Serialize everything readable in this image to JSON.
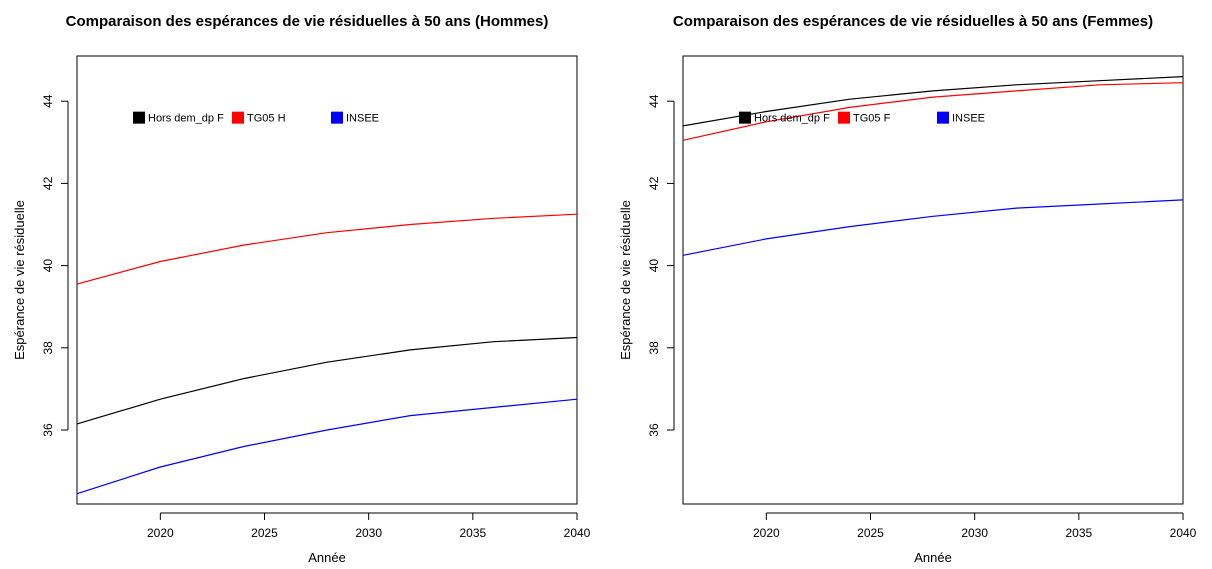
{
  "chart_data": [
    {
      "type": "line",
      "title": "Comparaison des espérances de vie résiduelles à 50 ans (Hommes)",
      "xlabel": "Année",
      "ylabel": "Espérance de vie résiduelle",
      "xlim": [
        2016,
        2040
      ],
      "ylim": [
        34.2,
        45.1
      ],
      "xticks": [
        2020,
        2025,
        2030,
        2035,
        2040
      ],
      "yticks": [
        36,
        38,
        40,
        42,
        44
      ],
      "grid": false,
      "legend_position": "top-left",
      "x": [
        2016,
        2020,
        2024,
        2028,
        2032,
        2036,
        2040
      ],
      "series": [
        {
          "name": "Hors dem_dp F",
          "color": "#000000",
          "values": [
            36.15,
            36.75,
            37.25,
            37.65,
            37.95,
            38.15,
            38.25
          ]
        },
        {
          "name": "TG05 H",
          "color": "#ff0000",
          "values": [
            39.55,
            40.1,
            40.5,
            40.8,
            41.0,
            41.15,
            41.25
          ]
        },
        {
          "name": "INSEE",
          "color": "#0000ff",
          "values": [
            34.45,
            35.1,
            35.6,
            36.0,
            36.35,
            36.55,
            36.75
          ]
        }
      ]
    },
    {
      "type": "line",
      "title": "Comparaison des espérances de vie résiduelles à 50 ans (Femmes)",
      "xlabel": "Année",
      "ylabel": "Espérance de vie résiduelle",
      "xlim": [
        2016,
        2040
      ],
      "ylim": [
        34.2,
        45.1
      ],
      "xticks": [
        2020,
        2025,
        2030,
        2035,
        2040
      ],
      "yticks": [
        36,
        38,
        40,
        42,
        44
      ],
      "grid": false,
      "legend_position": "top-left",
      "x": [
        2016,
        2020,
        2024,
        2028,
        2032,
        2036,
        2040
      ],
      "series": [
        {
          "name": "Hors dem_dp F",
          "color": "#000000",
          "values": [
            43.4,
            43.75,
            44.05,
            44.25,
            44.4,
            44.5,
            44.6
          ]
        },
        {
          "name": "TG05 F",
          "color": "#ff0000",
          "values": [
            43.05,
            43.5,
            43.85,
            44.1,
            44.25,
            44.4,
            44.45
          ]
        },
        {
          "name": "INSEE",
          "color": "#0000ff",
          "values": [
            40.25,
            40.65,
            40.95,
            41.2,
            41.4,
            41.5,
            41.6
          ]
        }
      ]
    }
  ]
}
